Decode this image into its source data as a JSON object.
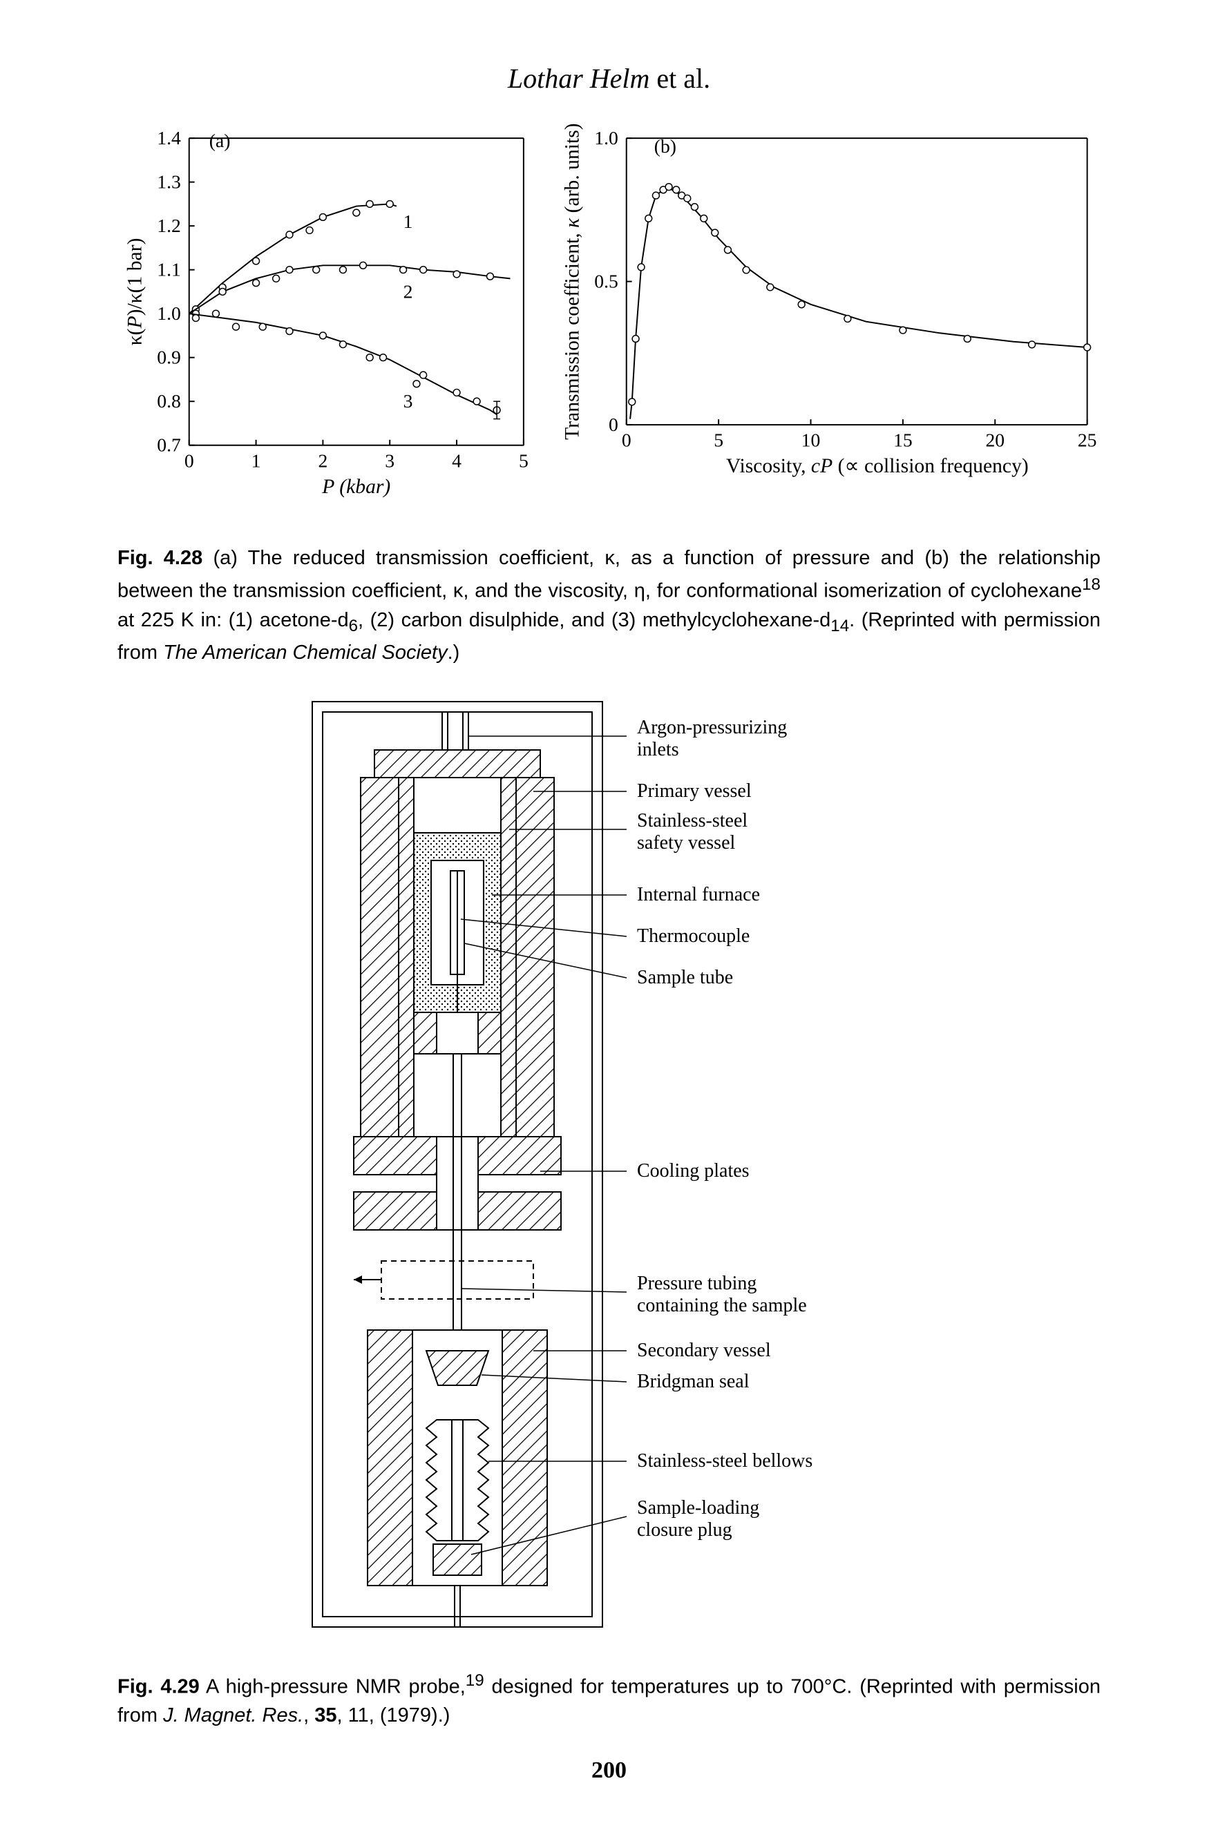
{
  "header": {
    "authors_main": "Lothar Helm",
    "authors_suffix": " et al."
  },
  "fig428a": {
    "type": "scatter-line",
    "panel_label": "(a)",
    "xlabel_html": "P (kbar)",
    "ylabel_html": "κ(P)/κ(1 bar)",
    "xlim": [
      0,
      5
    ],
    "ylim": [
      0.7,
      1.4
    ],
    "xtick_step": 1,
    "ytick_step": 0.1,
    "xticks": [
      0,
      1,
      2,
      3,
      4,
      5
    ],
    "yticks": [
      0.7,
      0.8,
      0.9,
      1.0,
      1.1,
      1.2,
      1.3,
      1.4
    ],
    "line_color": "#000000",
    "marker_color": "#ffffff",
    "marker_stroke": "#000000",
    "marker_kind": "circle",
    "marker_size": 5,
    "line_width": 2,
    "series": [
      {
        "label": "1",
        "label_xy": [
          3.2,
          1.23
        ],
        "points": [
          [
            0.1,
            1.01
          ],
          [
            0.5,
            1.06
          ],
          [
            1.0,
            1.12
          ],
          [
            1.5,
            1.18
          ],
          [
            1.8,
            1.19
          ],
          [
            2.0,
            1.22
          ],
          [
            2.5,
            1.23
          ],
          [
            2.7,
            1.25
          ],
          [
            3.0,
            1.25
          ]
        ],
        "line": [
          [
            0.0,
            1.0
          ],
          [
            0.5,
            1.07
          ],
          [
            1.0,
            1.13
          ],
          [
            1.5,
            1.18
          ],
          [
            2.0,
            1.22
          ],
          [
            2.5,
            1.245
          ],
          [
            3.0,
            1.25
          ],
          [
            3.1,
            1.245
          ]
        ]
      },
      {
        "label": "2",
        "label_xy": [
          3.2,
          1.07
        ],
        "points": [
          [
            0.1,
            1.0
          ],
          [
            0.5,
            1.05
          ],
          [
            1.0,
            1.07
          ],
          [
            1.3,
            1.08
          ],
          [
            1.5,
            1.1
          ],
          [
            1.9,
            1.1
          ],
          [
            2.3,
            1.1
          ],
          [
            2.6,
            1.11
          ],
          [
            3.2,
            1.1
          ],
          [
            3.5,
            1.1
          ],
          [
            4.0,
            1.09
          ],
          [
            4.5,
            1.085
          ]
        ],
        "line": [
          [
            0.0,
            1.0
          ],
          [
            0.5,
            1.05
          ],
          [
            1.0,
            1.08
          ],
          [
            1.5,
            1.1
          ],
          [
            2.0,
            1.11
          ],
          [
            2.5,
            1.11
          ],
          [
            3.0,
            1.11
          ],
          [
            3.5,
            1.1
          ],
          [
            4.0,
            1.095
          ],
          [
            4.5,
            1.085
          ],
          [
            4.8,
            1.08
          ]
        ]
      },
      {
        "label": "3",
        "label_xy": [
          3.2,
          0.82
        ],
        "points": [
          [
            0.1,
            0.99
          ],
          [
            0.4,
            1.0
          ],
          [
            0.7,
            0.97
          ],
          [
            1.1,
            0.97
          ],
          [
            1.5,
            0.96
          ],
          [
            2.0,
            0.95
          ],
          [
            2.3,
            0.93
          ],
          [
            2.7,
            0.9
          ],
          [
            2.9,
            0.9
          ],
          [
            3.4,
            0.84
          ],
          [
            3.5,
            0.86
          ],
          [
            4.0,
            0.82
          ],
          [
            4.3,
            0.8
          ],
          [
            4.6,
            0.78
          ]
        ],
        "line": [
          [
            0.0,
            1.0
          ],
          [
            0.5,
            0.99
          ],
          [
            1.0,
            0.98
          ],
          [
            1.5,
            0.965
          ],
          [
            2.0,
            0.95
          ],
          [
            2.5,
            0.925
          ],
          [
            3.0,
            0.895
          ],
          [
            3.5,
            0.855
          ],
          [
            4.0,
            0.815
          ],
          [
            4.5,
            0.78
          ],
          [
            4.6,
            0.77
          ]
        ],
        "error_bar": {
          "x": 4.6,
          "y": 0.78,
          "err": 0.02
        }
      }
    ]
  },
  "fig428b": {
    "type": "scatter-line",
    "panel_label": "(b)",
    "xlabel_html": "Viscosity, cP (∝ collision frequency)",
    "ylabel_html": "Transmission coefficient, κ (arb. units)",
    "xlim": [
      0,
      25
    ],
    "ylim": [
      0,
      1.0
    ],
    "xticks": [
      0,
      5,
      10,
      15,
      20,
      25
    ],
    "yticks": [
      0,
      0.5,
      1.0
    ],
    "line_color": "#000000",
    "marker_color": "#ffffff",
    "marker_stroke": "#000000",
    "marker_kind": "circle",
    "marker_size": 5,
    "line_width": 2,
    "points": [
      [
        0.3,
        0.08
      ],
      [
        0.5,
        0.3
      ],
      [
        0.8,
        0.55
      ],
      [
        1.2,
        0.72
      ],
      [
        1.6,
        0.8
      ],
      [
        2.0,
        0.82
      ],
      [
        2.3,
        0.83
      ],
      [
        2.7,
        0.82
      ],
      [
        3.0,
        0.8
      ],
      [
        3.3,
        0.79
      ],
      [
        3.7,
        0.76
      ],
      [
        4.2,
        0.72
      ],
      [
        4.8,
        0.67
      ],
      [
        5.5,
        0.61
      ],
      [
        6.5,
        0.54
      ],
      [
        7.8,
        0.48
      ],
      [
        9.5,
        0.42
      ],
      [
        12.0,
        0.37
      ],
      [
        15.0,
        0.33
      ],
      [
        18.5,
        0.3
      ],
      [
        22.0,
        0.28
      ],
      [
        25.0,
        0.27
      ]
    ],
    "line": [
      [
        0.2,
        0.02
      ],
      [
        0.3,
        0.08
      ],
      [
        0.5,
        0.3
      ],
      [
        0.8,
        0.55
      ],
      [
        1.2,
        0.72
      ],
      [
        1.6,
        0.8
      ],
      [
        2.2,
        0.83
      ],
      [
        3.0,
        0.8
      ],
      [
        4.0,
        0.73
      ],
      [
        5.0,
        0.65
      ],
      [
        6.5,
        0.55
      ],
      [
        8.0,
        0.48
      ],
      [
        10.0,
        0.42
      ],
      [
        13.0,
        0.36
      ],
      [
        17.0,
        0.32
      ],
      [
        21.0,
        0.29
      ],
      [
        25.0,
        0.27
      ]
    ]
  },
  "caption428": {
    "figlabel": "Fig. 4.28",
    "text_parts": [
      " (a) The reduced transmission coefficient, κ, as a function of pressure and (b) the relationship between the transmission coefficient, κ, and the viscosity, η, for conformational isomerization of cyclohexane",
      "18",
      " at 225 K in: (1) acetone-d",
      "6",
      ", (2) carbon disulphide, and (3) methylcyclohexane-d",
      "14",
      ". (Reprinted with permission from ",
      "The American Chemical Society",
      ".)"
    ]
  },
  "fig429_labels": [
    "Argon-pressurizing inlets",
    "Primary vessel",
    "Stainless-steel safety vessel",
    "Internal furnace",
    "Thermocouple",
    "Sample tube",
    "Cooling plates",
    "Pressure tubing containing the sample",
    "Secondary vessel",
    "Bridgman seal",
    "Stainless-steel bellows",
    "Sample-loading closure plug"
  ],
  "caption429": {
    "figlabel": "Fig. 4.29",
    "text_parts": [
      " A high-pressure NMR probe,",
      "19",
      " designed for temperatures up to 700°C. (Reprinted with permission from ",
      "J. Magnet. Res.",
      ", ",
      "35",
      ", 11, (1979).)"
    ]
  },
  "page_number": "200",
  "colors": {
    "bg": "#ffffff",
    "ink": "#000000"
  }
}
